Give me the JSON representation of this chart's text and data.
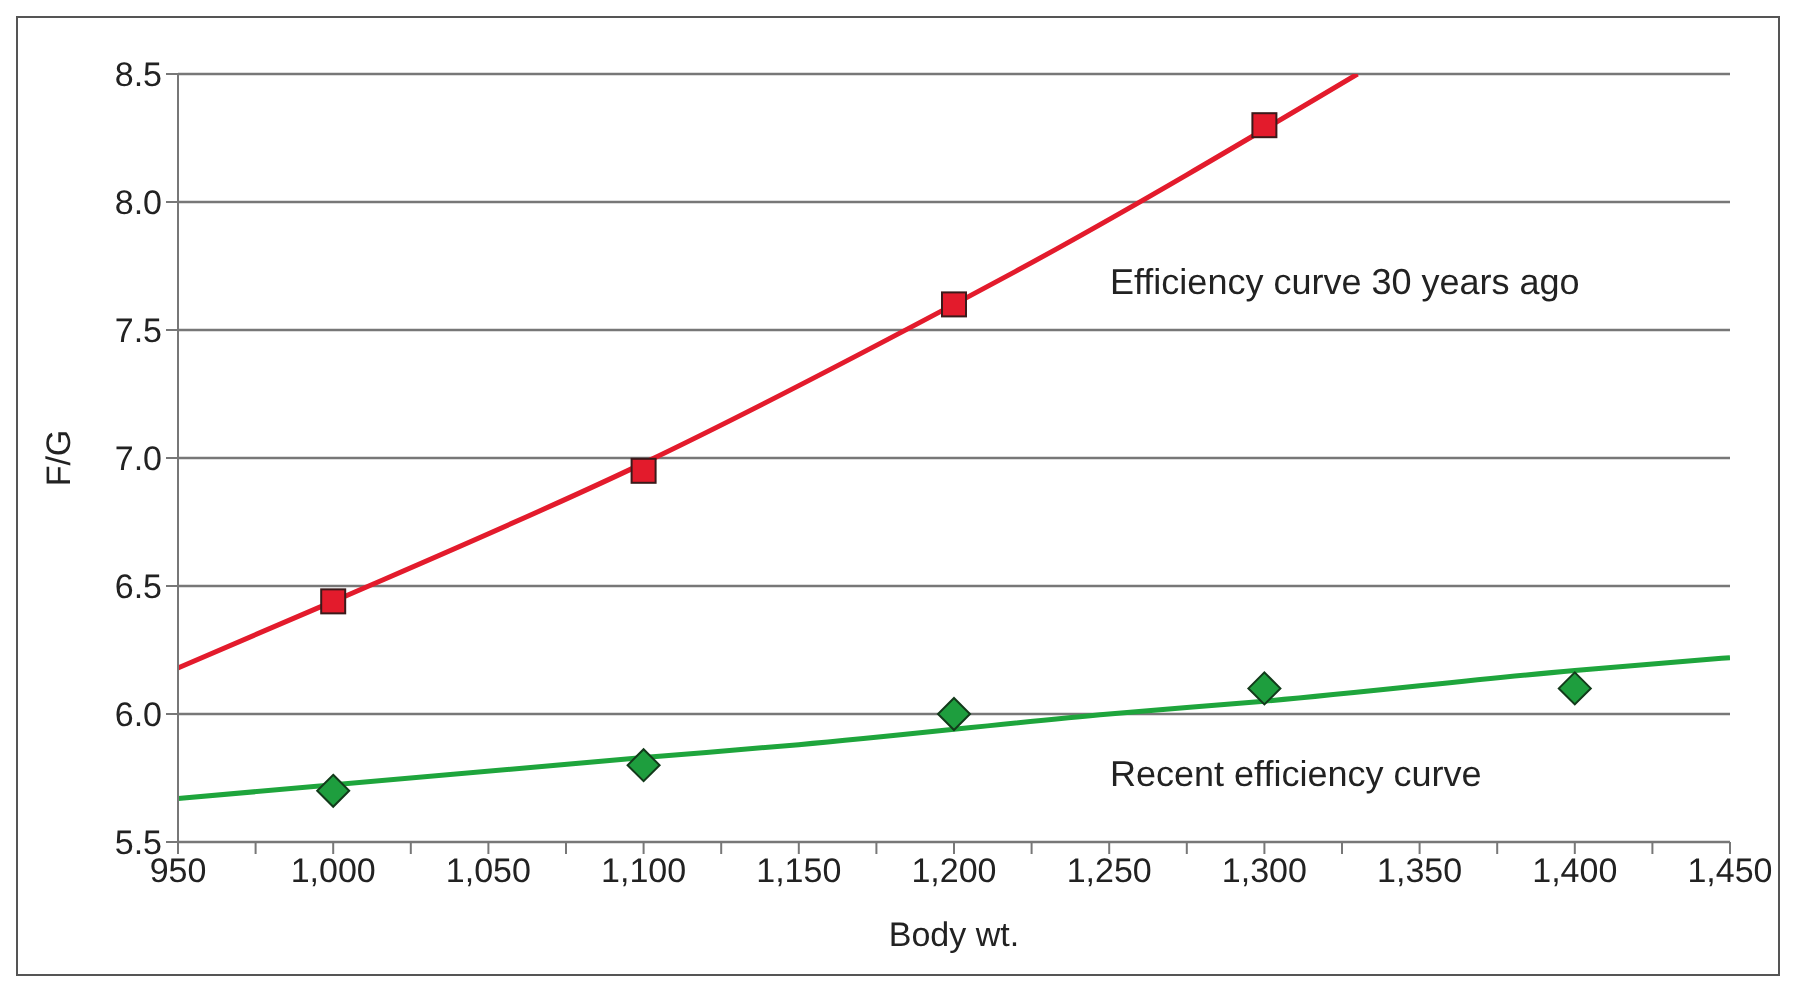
{
  "chart_data": {
    "type": "scatter",
    "xlabel": "Body wt.",
    "ylabel": "F/G",
    "xlim": [
      950,
      1450
    ],
    "xticks": [
      950,
      {
        "value": 975,
        "label": null
      },
      {
        "value": 1000,
        "label": "1,000"
      },
      {
        "value": 1025,
        "label": null
      },
      {
        "value": 1050,
        "label": "1,050"
      },
      {
        "value": 1075,
        "label": null
      },
      {
        "value": 1100,
        "label": "1,100"
      },
      {
        "value": 1125,
        "label": null
      },
      {
        "value": 1150,
        "label": "1,150"
      },
      {
        "value": 1175,
        "label": null
      },
      {
        "value": 1200,
        "label": "1,200"
      },
      {
        "value": 1225,
        "label": null
      },
      {
        "value": 1250,
        "label": "1,250"
      },
      {
        "value": 1275,
        "label": null
      },
      {
        "value": 1300,
        "label": "1,300"
      },
      {
        "value": 1325,
        "label": null
      },
      {
        "value": 1350,
        "label": "1,350"
      },
      {
        "value": 1375,
        "label": null
      },
      {
        "value": 1400,
        "label": "1,400"
      },
      {
        "value": 1425,
        "label": null
      },
      {
        "value": 1450,
        "label": "1,450"
      }
    ],
    "ylim": [
      5.5,
      8.5
    ],
    "yticks": [
      {
        "value": 5.5,
        "label": "5.5"
      },
      {
        "value": 6,
        "label": "6.0"
      },
      {
        "value": 6.5,
        "label": "6.5"
      },
      {
        "value": 7,
        "label": "7.0"
      },
      {
        "value": 7.5,
        "label": "7.5"
      },
      {
        "value": 8,
        "label": "8.0"
      },
      {
        "value": 8.5,
        "label": "8.5"
      }
    ],
    "grid": "y",
    "series": [
      {
        "type": "line",
        "marker": "none",
        "color": "#e31b2c",
        "x": [
          950,
          1000,
          1100,
          1200,
          1220,
          1330
        ],
        "values": [
          6.18,
          6.44,
          6.98,
          7.6,
          7.73,
          8.5
        ]
      },
      {
        "type": "line",
        "marker": "none",
        "color": "#1ea53c",
        "x": [
          950,
          1100,
          1150,
          1250,
          1300,
          1400,
          1450
        ],
        "values": [
          5.67,
          5.83,
          5.88,
          6.0,
          6.05,
          6.17,
          6.22
        ]
      },
      {
        "marker": "square",
        "color": "#e31b2c",
        "x": [
          1000,
          1100,
          1200,
          1300
        ],
        "values": [
          6.44,
          6.95,
          7.6,
          8.3
        ]
      },
      {
        "marker": "diamond",
        "color": "#1e9e3e",
        "x": [
          1000,
          1100,
          1200,
          1300,
          1400
        ],
        "values": [
          5.7,
          5.8,
          6.0,
          6.1,
          6.1
        ]
      }
    ],
    "annotations": [
      "Efficiency curve 30 years ago",
      "Recent efficiency curve"
    ]
  }
}
